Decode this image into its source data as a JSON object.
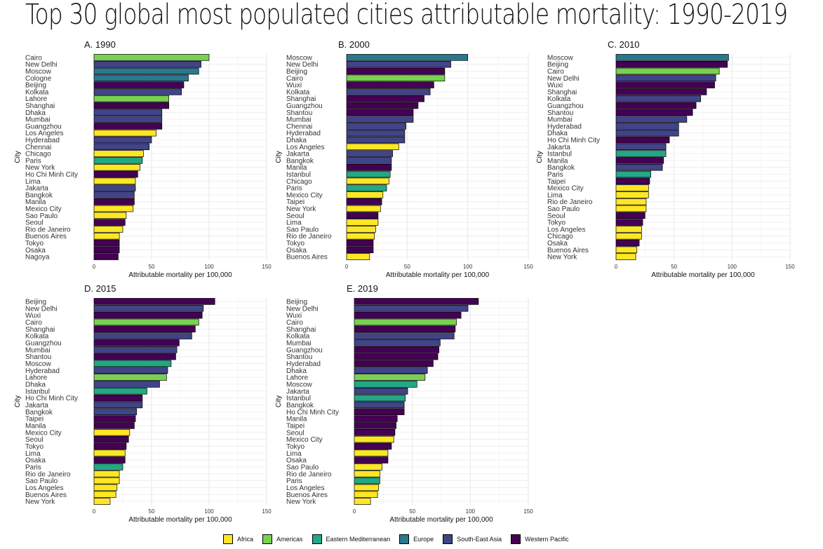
{
  "title": "Top 30 global most populated cities attributable mortality: 1990-2019",
  "legend": [
    {
      "name": "Africa",
      "color": "#fde725"
    },
    {
      "name": "Americas",
      "color": "#7ad151"
    },
    {
      "name": "Eastern Mediterranean",
      "color": "#22a884"
    },
    {
      "name": "Europe",
      "color": "#2a788e"
    },
    {
      "name": "South-East Asia",
      "color": "#414487"
    },
    {
      "name": "Western Pacific",
      "color": "#440154"
    }
  ],
  "chart_data": [
    {
      "type": "bar",
      "orientation": "horizontal",
      "title": "A. 1990",
      "xlabel": "Attributable mortality per 100,000",
      "ylabel": "City",
      "xlim": [
        0,
        150
      ],
      "xticks": [
        0,
        50,
        100,
        150
      ],
      "grid": true,
      "categories": [
        "Cairo",
        "New Delhi",
        "Moscow",
        "Cologne",
        "Beijing",
        "Kolkata",
        "Lahore",
        "Shanghai",
        "Dhaka",
        "Mumbai",
        "Guangzhou",
        "Los Angeles",
        "Hyderabad",
        "Chennai",
        "Chicago",
        "Paris",
        "New York",
        "Ho Chi Minh City",
        "Lima",
        "Jakarta",
        "Bangkok",
        "Manila",
        "Mexico City",
        "Sao Paulo",
        "Seoul",
        "Rio de Janeiro",
        "Buenos Aires",
        "Tokyo",
        "Osaka",
        "Nagoya"
      ],
      "values": [
        100,
        93,
        91,
        82,
        78,
        76,
        65,
        65,
        59,
        59,
        59,
        54,
        50,
        48,
        43,
        42,
        40,
        38,
        36,
        36,
        35,
        35,
        34,
        28,
        27,
        25,
        22,
        22,
        22,
        21
      ],
      "regions": [
        "Americas",
        "South-East Asia",
        "Europe",
        "Europe",
        "Western Pacific",
        "South-East Asia",
        "Americas",
        "Western Pacific",
        "South-East Asia",
        "South-East Asia",
        "Western Pacific",
        "Africa",
        "South-East Asia",
        "South-East Asia",
        "Africa",
        "Eastern Mediterranean",
        "Africa",
        "Western Pacific",
        "Africa",
        "South-East Asia",
        "South-East Asia",
        "Western Pacific",
        "Africa",
        "Africa",
        "Western Pacific",
        "Africa",
        "Africa",
        "Western Pacific",
        "Western Pacific",
        "Western Pacific"
      ]
    },
    {
      "type": "bar",
      "orientation": "horizontal",
      "title": "B. 2000",
      "xlabel": "Attributable mortality per 100,000",
      "ylabel": "City",
      "xlim": [
        0,
        150
      ],
      "xticks": [
        0,
        50,
        100,
        150
      ],
      "grid": true,
      "categories": [
        "Moscow",
        "New Delhi",
        "Beijing",
        "Cairo",
        "Wuxi",
        "Kolkata",
        "Shanghai",
        "Guangzhou",
        "Shantou",
        "Mumbai",
        "Chennai",
        "Hyderabad",
        "Dhaka",
        "Los Angeles",
        "Jakarta",
        "Bangkok",
        "Manila",
        "Istanbul",
        "Chicago",
        "Paris",
        "Mexico City",
        "Taipei",
        "New York",
        "Seoul",
        "Lima",
        "Sao Paulo",
        "Rio de Janeiro",
        "Tokyo",
        "Osaka",
        "Buenos Aires"
      ],
      "values": [
        100,
        86,
        81,
        81,
        72,
        69,
        64,
        59,
        55,
        55,
        49,
        48,
        48,
        43,
        38,
        37,
        37,
        36,
        35,
        33,
        30,
        29,
        28,
        26,
        26,
        24,
        23,
        22,
        22,
        19
      ],
      "regions": [
        "Europe",
        "South-East Asia",
        "Western Pacific",
        "Americas",
        "Western Pacific",
        "South-East Asia",
        "Western Pacific",
        "Western Pacific",
        "Western Pacific",
        "South-East Asia",
        "South-East Asia",
        "South-East Asia",
        "South-East Asia",
        "Africa",
        "South-East Asia",
        "South-East Asia",
        "Western Pacific",
        "Eastern Mediterranean",
        "Africa",
        "Eastern Mediterranean",
        "Africa",
        "Western Pacific",
        "Africa",
        "Western Pacific",
        "Africa",
        "Africa",
        "Africa",
        "Western Pacific",
        "Western Pacific",
        "Africa"
      ]
    },
    {
      "type": "bar",
      "orientation": "horizontal",
      "title": "C. 2010",
      "xlabel": "Attributable mortality per 100,000",
      "ylabel": "City",
      "xlim": [
        0,
        150
      ],
      "xticks": [
        0,
        50,
        100,
        150
      ],
      "grid": true,
      "categories": [
        "Moscow",
        "Beijing",
        "Cairo",
        "New Delhi",
        "Wuxi",
        "Shanghai",
        "Kolkata",
        "Guangzhou",
        "Shantou",
        "Mumbai",
        "Hyderabad",
        "Dhaka",
        "Ho Chi Minh City",
        "Jakarta",
        "Istanbul",
        "Manila",
        "Bangkok",
        "Paris",
        "Taipei",
        "Mexico City",
        "Lima",
        "Rio de Janeiro",
        "Sao Paulo",
        "Seoul",
        "Tokyo",
        "Los Angeles",
        "Chicago",
        "Osaka",
        "Buenos Aires",
        "New York"
      ],
      "values": [
        97,
        96,
        89,
        86,
        85,
        78,
        73,
        69,
        66,
        61,
        54,
        54,
        46,
        43,
        43,
        41,
        40,
        30,
        29,
        28,
        28,
        26,
        26,
        25,
        23,
        22,
        22,
        20,
        18,
        17
      ],
      "regions": [
        "Europe",
        "Western Pacific",
        "Americas",
        "South-East Asia",
        "Western Pacific",
        "Western Pacific",
        "South-East Asia",
        "Western Pacific",
        "Western Pacific",
        "South-East Asia",
        "South-East Asia",
        "South-East Asia",
        "Western Pacific",
        "South-East Asia",
        "Eastern Mediterranean",
        "Western Pacific",
        "South-East Asia",
        "Eastern Mediterranean",
        "Western Pacific",
        "Africa",
        "Africa",
        "Africa",
        "Africa",
        "Western Pacific",
        "Western Pacific",
        "Africa",
        "Africa",
        "Western Pacific",
        "Africa",
        "Africa"
      ]
    },
    {
      "type": "bar",
      "orientation": "horizontal",
      "title": "D. 2015",
      "xlabel": "Attributable mortality per 100,000",
      "ylabel": "City",
      "xlim": [
        0,
        150
      ],
      "xticks": [
        0,
        50,
        100,
        150
      ],
      "grid": true,
      "categories": [
        "Beijing",
        "New Delhi",
        "Wuxi",
        "Cairo",
        "Shanghai",
        "Kolkata",
        "Guangzhou",
        "Mumbai",
        "Shantou",
        "Moscow",
        "Hyderabad",
        "Lahore",
        "Dhaka",
        "Istanbul",
        "Ho Chi Minh City",
        "Jakarta",
        "Bangkok",
        "Taipei",
        "Manila",
        "Mexico City",
        "Seoul",
        "Tokyo",
        "Lima",
        "Osaka",
        "Paris",
        "Rio de Janeiro",
        "Sao Paulo",
        "Los Angeles",
        "Buenos Aires",
        "New York"
      ],
      "values": [
        105,
        95,
        94,
        91,
        88,
        85,
        74,
        72,
        71,
        67,
        64,
        63,
        57,
        46,
        42,
        42,
        37,
        36,
        35,
        31,
        30,
        28,
        27,
        27,
        25,
        22,
        22,
        20,
        19,
        14
      ],
      "regions": [
        "Western Pacific",
        "South-East Asia",
        "Western Pacific",
        "Americas",
        "Western Pacific",
        "South-East Asia",
        "Western Pacific",
        "South-East Asia",
        "Western Pacific",
        "Eastern Mediterranean",
        "South-East Asia",
        "Americas",
        "South-East Asia",
        "Eastern Mediterranean",
        "Western Pacific",
        "South-East Asia",
        "South-East Asia",
        "Western Pacific",
        "Western Pacific",
        "Africa",
        "Western Pacific",
        "Western Pacific",
        "Africa",
        "Western Pacific",
        "Eastern Mediterranean",
        "Africa",
        "Africa",
        "Africa",
        "Africa",
        "Africa"
      ]
    },
    {
      "type": "bar",
      "orientation": "horizontal",
      "title": "E. 2019",
      "xlabel": "Attributable mortality per 100,000",
      "ylabel": "City",
      "xlim": [
        0,
        150
      ],
      "xticks": [
        0,
        50,
        100,
        150
      ],
      "grid": true,
      "categories": [
        "Beijing",
        "New Delhi",
        "Wuxi",
        "Cairo",
        "Shanghai",
        "Kolkata",
        "Mumbai",
        "Guangzhou",
        "Shantou",
        "Hyderabad",
        "Dhaka",
        "Lahore",
        "Moscow",
        "Jakarta",
        "Istanbul",
        "Bangkok",
        "Ho Chi Minh City",
        "Manila",
        "Taipei",
        "Seoul",
        "Mexico City",
        "Tokyo",
        "Lima",
        "Osaka",
        "Sao Paulo",
        "Rio de Janeiro",
        "Paris",
        "Los Angeles",
        "Buenos Aires",
        "New York"
      ],
      "values": [
        107,
        98,
        92,
        88,
        87,
        86,
        74,
        73,
        72,
        68,
        63,
        61,
        54,
        46,
        44,
        43,
        43,
        37,
        36,
        35,
        34,
        32,
        29,
        29,
        24,
        22,
        22,
        21,
        20,
        14
      ],
      "regions": [
        "Western Pacific",
        "South-East Asia",
        "Western Pacific",
        "Americas",
        "Western Pacific",
        "South-East Asia",
        "South-East Asia",
        "Western Pacific",
        "Western Pacific",
        "Western Pacific",
        "South-East Asia",
        "Americas",
        "Eastern Mediterranean",
        "South-East Asia",
        "Eastern Mediterranean",
        "South-East Asia",
        "Western Pacific",
        "Western Pacific",
        "Western Pacific",
        "Western Pacific",
        "Africa",
        "Western Pacific",
        "Africa",
        "Western Pacific",
        "Africa",
        "Africa",
        "Eastern Mediterranean",
        "Africa",
        "Africa",
        "Africa"
      ]
    }
  ]
}
